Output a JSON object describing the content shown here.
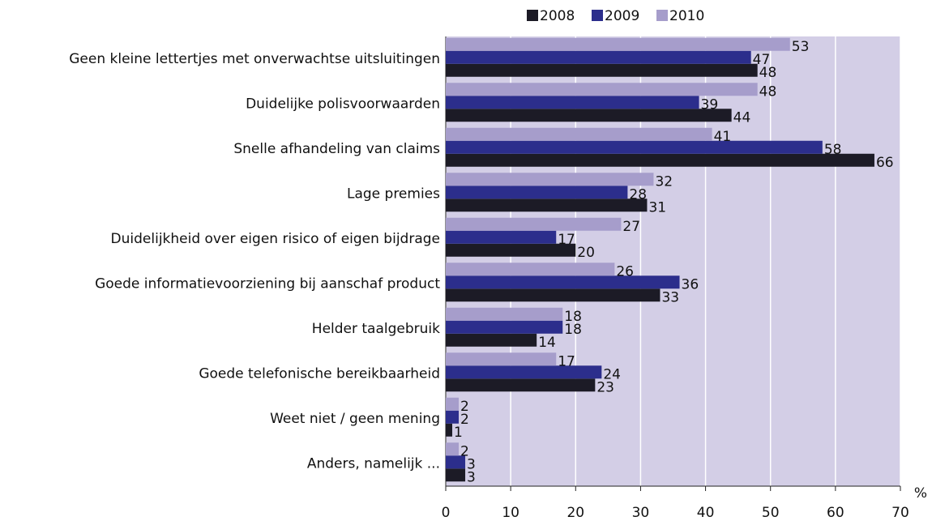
{
  "chart_data": {
    "type": "bar",
    "orientation": "horizontal",
    "categories": [
      "Geen kleine lettertjes met onverwachtse uitsluitingen",
      "Duidelijke polisvoorwaarden",
      "Snelle afhandeling van claims",
      "Lage premies",
      "Duidelijkheid over eigen risico of eigen bijdrage",
      "Goede informatievoorziening bij aanschaf product",
      "Helder taalgebruik",
      "Goede telefonische bereikbaarheid",
      "Weet niet / geen mening",
      "Anders, namelijk ..."
    ],
    "series": [
      {
        "name": "2008",
        "color": "#1c1b26",
        "values": [
          48,
          44,
          66,
          31,
          20,
          33,
          14,
          23,
          1,
          3
        ]
      },
      {
        "name": "2009",
        "color": "#2c2e8c",
        "values": [
          47,
          39,
          58,
          28,
          17,
          36,
          18,
          24,
          2,
          3
        ]
      },
      {
        "name": "2010",
        "color": "#a69dcb",
        "values": [
          53,
          48,
          41,
          32,
          27,
          26,
          18,
          17,
          2,
          2
        ]
      }
    ],
    "x_label": "%",
    "xlim": [
      0,
      70
    ],
    "xticks": [
      0,
      10,
      20,
      30,
      40,
      50,
      60,
      70
    ],
    "grid": true,
    "legend": "top"
  }
}
